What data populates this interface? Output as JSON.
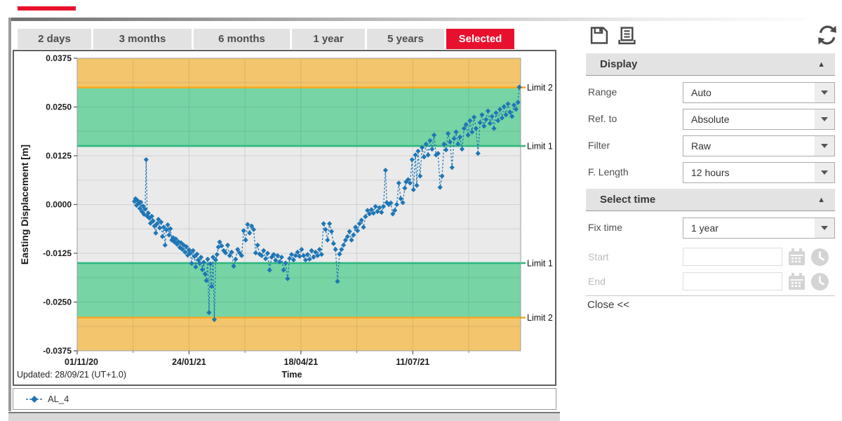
{
  "tabs": {
    "items": [
      {
        "label": "2 days",
        "active": false
      },
      {
        "label": "3 months",
        "active": false
      },
      {
        "label": "6 months",
        "active": false
      },
      {
        "label": "1 year",
        "active": false
      },
      {
        "label": "5 years",
        "active": false
      },
      {
        "label": "Selected",
        "active": true
      }
    ],
    "active_color": "#e8112d"
  },
  "toolbar": {
    "icons": [
      "save",
      "print",
      "refresh"
    ],
    "icon_color": "#4a4a4a"
  },
  "panel": {
    "display": {
      "title": "Display",
      "collapse_icon": "▲",
      "rows": [
        {
          "label": "Range",
          "value": "Auto"
        },
        {
          "label": "Ref. to",
          "value": "Absolute"
        },
        {
          "label": "Filter",
          "value": "Raw"
        },
        {
          "label": "F. Length",
          "value": "12 hours"
        }
      ]
    },
    "select_time": {
      "title": "Select time",
      "collapse_icon": "▲",
      "fix_time": {
        "label": "Fix time",
        "value": "1 year"
      },
      "start": {
        "label": "Start",
        "value": "",
        "icons": [
          "calendar",
          "clock"
        ],
        "disabled": true
      },
      "end": {
        "label": "End",
        "value": "",
        "icons": [
          "calendar",
          "clock"
        ],
        "disabled": true
      }
    },
    "close_label": "Close <<"
  },
  "chart_data": {
    "type": "scatter",
    "xlabel": "Time",
    "ylabel": "Easting Displacement [m]",
    "updated_label": "Updated: 28/09/21 (UT+1.0)",
    "x_domain_days": [
      0,
      333
    ],
    "x_ticks": [
      {
        "day": 0,
        "label": "01/11/20"
      },
      {
        "day": 84,
        "label": "24/01/21"
      },
      {
        "day": 168,
        "label": "18/04/21"
      },
      {
        "day": 252,
        "label": "11/07/21"
      }
    ],
    "x_minor_ticks": [
      42,
      126,
      210,
      294
    ],
    "ylim": [
      -0.0375,
      0.0375
    ],
    "y_ticks": [
      {
        "value": 0.0375,
        "label": "0.0375"
      },
      {
        "value": 0.025,
        "label": "0.0250"
      },
      {
        "value": 0.0125,
        "label": "0.0125"
      },
      {
        "value": 0.0,
        "label": "0.0000"
      },
      {
        "value": -0.0125,
        "label": "-0.0125"
      },
      {
        "value": -0.025,
        "label": "-0.0250"
      },
      {
        "value": -0.0375,
        "label": "-0.0375"
      }
    ],
    "y_minor_step": 0.00625,
    "bands": [
      {
        "from": 0.03,
        "to": 0.0375,
        "color": "#f3c66d"
      },
      {
        "from": 0.015,
        "to": 0.03,
        "color": "#76d4a5"
      },
      {
        "from": -0.015,
        "to": 0.015,
        "color": "#eaeaea"
      },
      {
        "from": -0.029,
        "to": -0.015,
        "color": "#76d4a5"
      },
      {
        "from": -0.0375,
        "to": -0.029,
        "color": "#f3c66d"
      }
    ],
    "limit_lines": [
      {
        "value": 0.03,
        "label": "Limit 2",
        "color": "#f7a823"
      },
      {
        "value": 0.015,
        "label": "Limit 1",
        "color": "#2fb87e"
      },
      {
        "value": -0.015,
        "label": "Limit 1",
        "color": "#2fb87e"
      },
      {
        "value": -0.029,
        "label": "Limit 2",
        "color": "#f7a823"
      }
    ],
    "series": [
      {
        "name": "AL_4",
        "color": "#1e76b5",
        "points": [
          [
            43,
            0.0008
          ],
          [
            43.8,
            0.0015
          ],
          [
            44.6,
            -0.0002
          ],
          [
            45.4,
            0.001
          ],
          [
            46.2,
            0.0003
          ],
          [
            47,
            -0.001
          ],
          [
            47.8,
            0.0006
          ],
          [
            48.6,
            -0.0018
          ],
          [
            49.4,
            -0.0004
          ],
          [
            50.2,
            -0.0025
          ],
          [
            51,
            -0.0012
          ],
          [
            51.8,
            0.0115
          ],
          [
            52.6,
            -0.003
          ],
          [
            53.4,
            -0.0022
          ],
          [
            54.2,
            -0.0035
          ],
          [
            55,
            -0.0048
          ],
          [
            56,
            -0.003
          ],
          [
            57,
            -0.0042
          ],
          [
            58,
            -0.0055
          ],
          [
            59,
            -0.0073
          ],
          [
            60,
            -0.0049
          ],
          [
            61,
            -0.0038
          ],
          [
            62,
            -0.006
          ],
          [
            63,
            -0.0045
          ],
          [
            64,
            -0.0082
          ],
          [
            65,
            -0.0058
          ],
          [
            66,
            -0.0104
          ],
          [
            67,
            -0.0065
          ],
          [
            68,
            -0.0052
          ],
          [
            69,
            -0.0078
          ],
          [
            70,
            -0.0062
          ],
          [
            71,
            -0.0091
          ],
          [
            72,
            -0.0085
          ],
          [
            73,
            -0.0096
          ],
          [
            74,
            -0.0088
          ],
          [
            75,
            -0.0102
          ],
          [
            76,
            -0.0095
          ],
          [
            77,
            -0.011
          ],
          [
            78,
            -0.0098
          ],
          [
            79,
            -0.0115
          ],
          [
            80,
            -0.0104
          ],
          [
            81,
            -0.0122
          ],
          [
            82,
            -0.0108
          ],
          [
            83,
            -0.013
          ],
          [
            84,
            -0.0116
          ],
          [
            85,
            -0.0125
          ],
          [
            86,
            -0.0151
          ],
          [
            87,
            -0.0118
          ],
          [
            88,
            -0.0133
          ],
          [
            89,
            -0.016
          ],
          [
            90,
            -0.0127
          ],
          [
            91,
            -0.0142
          ],
          [
            92,
            -0.0151
          ],
          [
            93,
            -0.0135
          ],
          [
            94,
            -0.0167
          ],
          [
            95,
            -0.0148
          ],
          [
            96,
            -0.0178
          ],
          [
            97,
            -0.0195
          ],
          [
            98,
            -0.014
          ],
          [
            99,
            -0.0277
          ],
          [
            100,
            -0.0152
          ],
          [
            101,
            -0.021
          ],
          [
            102,
            -0.0135
          ],
          [
            103,
            -0.0295
          ],
          [
            104,
            -0.0142
          ],
          [
            105,
            -0.0128
          ],
          [
            106,
            -0.0109
          ],
          [
            107,
            -0.0096
          ],
          [
            108.5,
            -0.0106
          ],
          [
            110,
            -0.0118
          ],
          [
            111.5,
            -0.0124
          ],
          [
            113,
            -0.0104
          ],
          [
            114.5,
            -0.0131
          ],
          [
            116,
            -0.0122
          ],
          [
            117.5,
            -0.0158
          ],
          [
            119,
            -0.014
          ],
          [
            120.5,
            -0.0115
          ],
          [
            122,
            -0.0124
          ],
          [
            123.5,
            -0.0131
          ],
          [
            125,
            -0.0067
          ],
          [
            126.5,
            -0.0091
          ],
          [
            128,
            -0.0051
          ],
          [
            129.5,
            -0.0073
          ],
          [
            131,
            -0.0055
          ],
          [
            132.5,
            -0.0064
          ],
          [
            134,
            -0.0124
          ],
          [
            135.5,
            -0.0104
          ],
          [
            137,
            -0.0127
          ],
          [
            138.5,
            -0.0131
          ],
          [
            140,
            -0.0118
          ],
          [
            141.5,
            -0.0139
          ],
          [
            143,
            -0.0125
          ],
          [
            144.5,
            -0.0168
          ],
          [
            146,
            -0.0135
          ],
          [
            147.5,
            -0.0128
          ],
          [
            149,
            -0.0143
          ],
          [
            150.5,
            -0.0131
          ],
          [
            152,
            -0.0147
          ],
          [
            153.5,
            -0.0135
          ],
          [
            155,
            -0.0168
          ],
          [
            156.5,
            -0.015
          ],
          [
            158,
            -0.019
          ],
          [
            159.5,
            -0.0138
          ],
          [
            161,
            -0.0128
          ],
          [
            162.5,
            -0.0142
          ],
          [
            164,
            -0.0131
          ],
          [
            165.5,
            -0.0122
          ],
          [
            167,
            -0.0133
          ],
          [
            168.5,
            -0.0115
          ],
          [
            170,
            -0.0131
          ],
          [
            171.5,
            -0.0142
          ],
          [
            173,
            -0.0128
          ],
          [
            174.5,
            -0.014
          ],
          [
            176,
            -0.0118
          ],
          [
            177.5,
            -0.0135
          ],
          [
            179,
            -0.0122
          ],
          [
            180.5,
            -0.0131
          ],
          [
            182,
            -0.0115
          ],
          [
            183.5,
            -0.0128
          ],
          [
            185,
            -0.0049
          ],
          [
            186.5,
            -0.0064
          ],
          [
            188,
            -0.0091
          ],
          [
            189.5,
            -0.0049
          ],
          [
            191,
            -0.0069
          ],
          [
            192.5,
            -0.01
          ],
          [
            194,
            -0.0115
          ],
          [
            195.5,
            -0.0197
          ],
          [
            197,
            -0.0127
          ],
          [
            198.5,
            -0.0115
          ],
          [
            200,
            -0.0104
          ],
          [
            201.5,
            -0.0091
          ],
          [
            203,
            -0.0082
          ],
          [
            204.5,
            -0.0069
          ],
          [
            206,
            -0.0091
          ],
          [
            207.5,
            -0.0078
          ],
          [
            209,
            -0.0058
          ],
          [
            210.5,
            -0.0067
          ],
          [
            212,
            -0.0049
          ],
          [
            213.5,
            -0.004
          ],
          [
            215,
            -0.0058
          ],
          [
            216.5,
            -0.0031
          ],
          [
            218,
            -0.0015
          ],
          [
            219.5,
            -0.0024
          ],
          [
            221,
            -0.0013
          ],
          [
            222.5,
            -0.0022
          ],
          [
            224,
            -0.0005
          ],
          [
            225.5,
            -0.0018
          ],
          [
            227,
            -0.0008
          ],
          [
            228.5,
            -0.002
          ],
          [
            230,
            -0.0005
          ],
          [
            231.5,
            0.0088
          ],
          [
            232.5,
            0.0005
          ],
          [
            234,
            0.0
          ],
          [
            235.5,
            0.0004
          ],
          [
            237,
            -0.0024
          ],
          [
            238.5,
            -0.0015
          ],
          [
            240,
            0.0
          ],
          [
            241.5,
            0.0055
          ],
          [
            243,
            0.0015
          ],
          [
            244.5,
            0.0005
          ],
          [
            246,
            0.0042
          ],
          [
            247,
            0.0058
          ],
          [
            248.5,
            0.0064
          ],
          [
            250,
            0.0055
          ],
          [
            251.5,
            0.0115
          ],
          [
            252.5,
            0.0038
          ],
          [
            254,
            0.0127
          ],
          [
            255,
            0.0049
          ],
          [
            256,
            0.0137
          ],
          [
            257.5,
            0.0073
          ],
          [
            259,
            0.0146
          ],
          [
            260.5,
            0.0122
          ],
          [
            262,
            0.0155
          ],
          [
            263.5,
            0.0127
          ],
          [
            265,
            0.0164
          ],
          [
            266.5,
            0.0142
          ],
          [
            268,
            0.0178
          ],
          [
            269.5,
            0.0127
          ],
          [
            271,
            0.0131
          ],
          [
            272.5,
            0.0044
          ],
          [
            274,
            0.0073
          ],
          [
            275.5,
            0.0155
          ],
          [
            277,
            0.014
          ],
          [
            278.5,
            0.0182
          ],
          [
            280,
            0.016
          ],
          [
            281.5,
            0.0095
          ],
          [
            283,
            0.0169
          ],
          [
            284.5,
            0.0186
          ],
          [
            286,
            0.0155
          ],
          [
            287.5,
            0.0173
          ],
          [
            289,
            0.0142
          ],
          [
            290.5,
            0.0195
          ],
          [
            292,
            0.0205
          ],
          [
            293.5,
            0.0178
          ],
          [
            295,
            0.0215
          ],
          [
            296.5,
            0.0186
          ],
          [
            298,
            0.0224
          ],
          [
            299.5,
            0.0195
          ],
          [
            301,
            0.0131
          ],
          [
            302.5,
            0.021
          ],
          [
            304,
            0.023
          ],
          [
            305.5,
            0.0201
          ],
          [
            307,
            0.0218
          ],
          [
            308.5,
            0.024
          ],
          [
            310,
            0.0208
          ],
          [
            311.5,
            0.0226
          ],
          [
            313,
            0.0195
          ],
          [
            314.5,
            0.0235
          ],
          [
            316,
            0.0215
          ],
          [
            317.5,
            0.0244
          ],
          [
            319,
            0.0222
          ],
          [
            320.5,
            0.0251
          ],
          [
            322,
            0.023
          ],
          [
            323.5,
            0.0258
          ],
          [
            325,
            0.0237
          ],
          [
            326.5,
            0.0226
          ],
          [
            328,
            0.0255
          ],
          [
            329.5,
            0.0244
          ],
          [
            331,
            0.0262
          ],
          [
            332,
            0.0301
          ]
        ]
      }
    ]
  }
}
